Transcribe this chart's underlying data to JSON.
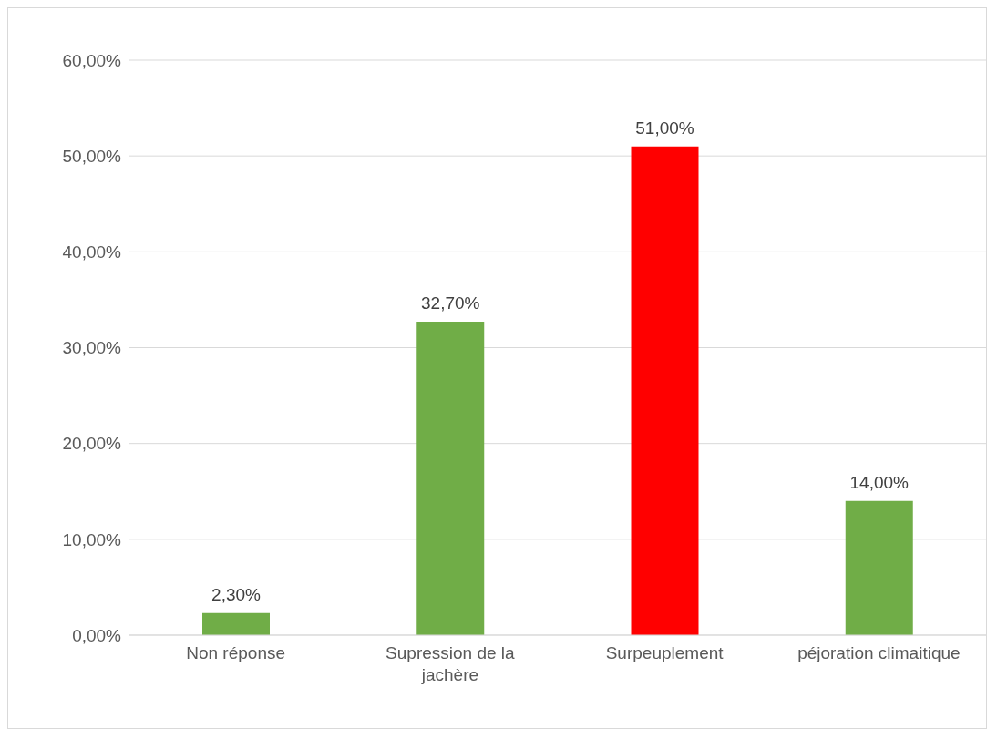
{
  "chart_data": {
    "type": "bar",
    "categories": [
      "Non réponse",
      "Supression de la jachère",
      "Surpeuplement",
      "péjoration climaitique"
    ],
    "values": [
      2.3,
      32.7,
      51,
      14
    ],
    "colors": [
      "#70ad47",
      "#70ad47",
      "#ff0000",
      "#70ad47"
    ],
    "value_labels": [
      "2,30%",
      "32,70%",
      "51,00%",
      "14,00%"
    ],
    "ylim": [
      0,
      60
    ],
    "yticks": [
      {
        "value": 0,
        "label": "0,00%"
      },
      {
        "value": 10,
        "label": "10,00%"
      },
      {
        "value": 20,
        "label": "20,00%"
      },
      {
        "value": 30,
        "label": "30,00%"
      },
      {
        "value": 40,
        "label": "40,00%"
      },
      {
        "value": 50,
        "label": "50,00%"
      },
      {
        "value": 60,
        "label": "60,00%"
      }
    ],
    "grid": "y",
    "legend": false
  }
}
